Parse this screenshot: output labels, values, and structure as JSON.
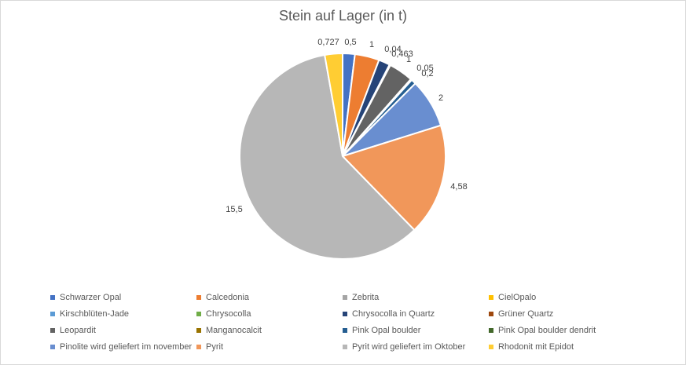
{
  "chart_data": {
    "type": "pie",
    "title": "Stein auf Lager (in t)",
    "legend_position": "bottom",
    "slices": [
      {
        "name": "Schwarzer Opal",
        "value": 0.5,
        "label": "0,5",
        "color": "#4472C4"
      },
      {
        "name": "Calcedonia",
        "value": 1,
        "label": "1",
        "color": "#ED7D31"
      },
      {
        "name": "Zebrita",
        "value": 0,
        "label": "",
        "color": "#A5A5A5"
      },
      {
        "name": "CielOpalo",
        "value": 0,
        "label": "",
        "color": "#FFC000"
      },
      {
        "name": "Kirschblüten-Jade",
        "value": 0,
        "label": "",
        "color": "#5B9BD5"
      },
      {
        "name": "Chrysocolla",
        "value": 0,
        "label": "",
        "color": "#70AD47"
      },
      {
        "name": "Chrysocolla in Quartz",
        "value": 0.463,
        "label": "0,463",
        "color": "#264478"
      },
      {
        "name": "Grüner Quartz",
        "value": 0.04,
        "label": "0,04",
        "color": "#9E480E"
      },
      {
        "name": "Leopardit",
        "value": 1,
        "label": "1",
        "color": "#636363"
      },
      {
        "name": "Manganocalcit",
        "value": 0.05,
        "label": "0,05",
        "color": "#997300"
      },
      {
        "name": "Pink Opal boulder",
        "value": 0.2,
        "label": "0,2",
        "color": "#255E91"
      },
      {
        "name": "Pink Opal boulder dendrit",
        "value": 0,
        "label": "",
        "color": "#43682B"
      },
      {
        "name": "Pinolite wird geliefert im november",
        "value": 2,
        "label": "2",
        "color": "#698ED0"
      },
      {
        "name": "Pyrit",
        "value": 4.58,
        "label": "4,58",
        "color": "#F1975A"
      },
      {
        "name": "Pyrit wird geliefert im Oktober",
        "value": 15.5,
        "label": "15,5",
        "color": "#B7B7B7"
      },
      {
        "name": "Rhodonit mit Epidot",
        "value": 0.727,
        "label": "0,727",
        "color": "#FFCD33"
      }
    ]
  }
}
